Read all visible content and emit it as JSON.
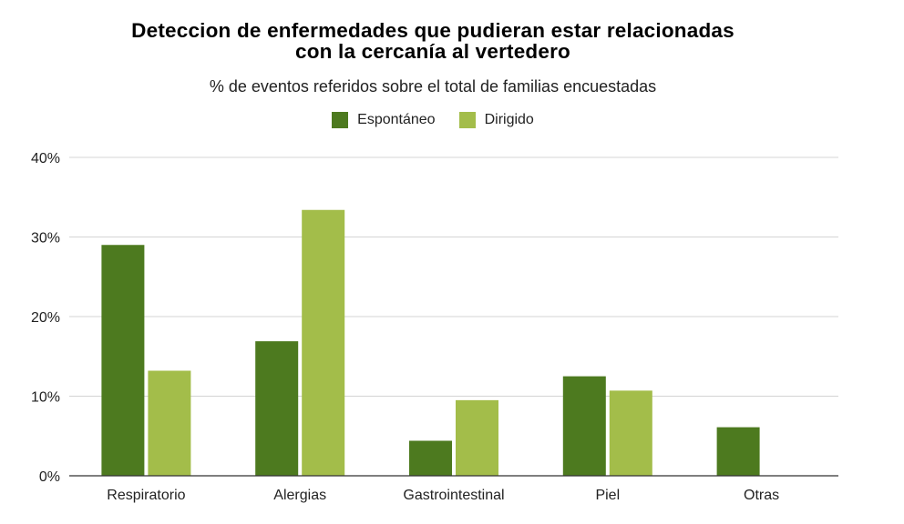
{
  "chart_data": {
    "type": "bar",
    "title_line1": "Deteccion de enfermedades que pudieran estar relacionadas",
    "title_line2": "con la cercanía al vertedero",
    "subtitle": "% de eventos referidos sobre el total de familias encuestadas",
    "categories": [
      "Respiratorio",
      "Alergias",
      "Gastrointestinal",
      "Piel",
      "Otras"
    ],
    "series": [
      {
        "name": "Espontáneo",
        "color": "#4d7a1f",
        "values": [
          29,
          16.9,
          4.4,
          12.5,
          6.1
        ]
      },
      {
        "name": "Dirigido",
        "color": "#a3bd4a",
        "values": [
          13.2,
          33.4,
          9.5,
          10.7,
          0
        ]
      }
    ],
    "ylim": [
      0,
      40
    ],
    "yticks": [
      "0%",
      "10%",
      "20%",
      "30%",
      "40%"
    ],
    "ytick_values": [
      0,
      10,
      20,
      30,
      40
    ],
    "grid": true,
    "legend_position": "top-center"
  }
}
